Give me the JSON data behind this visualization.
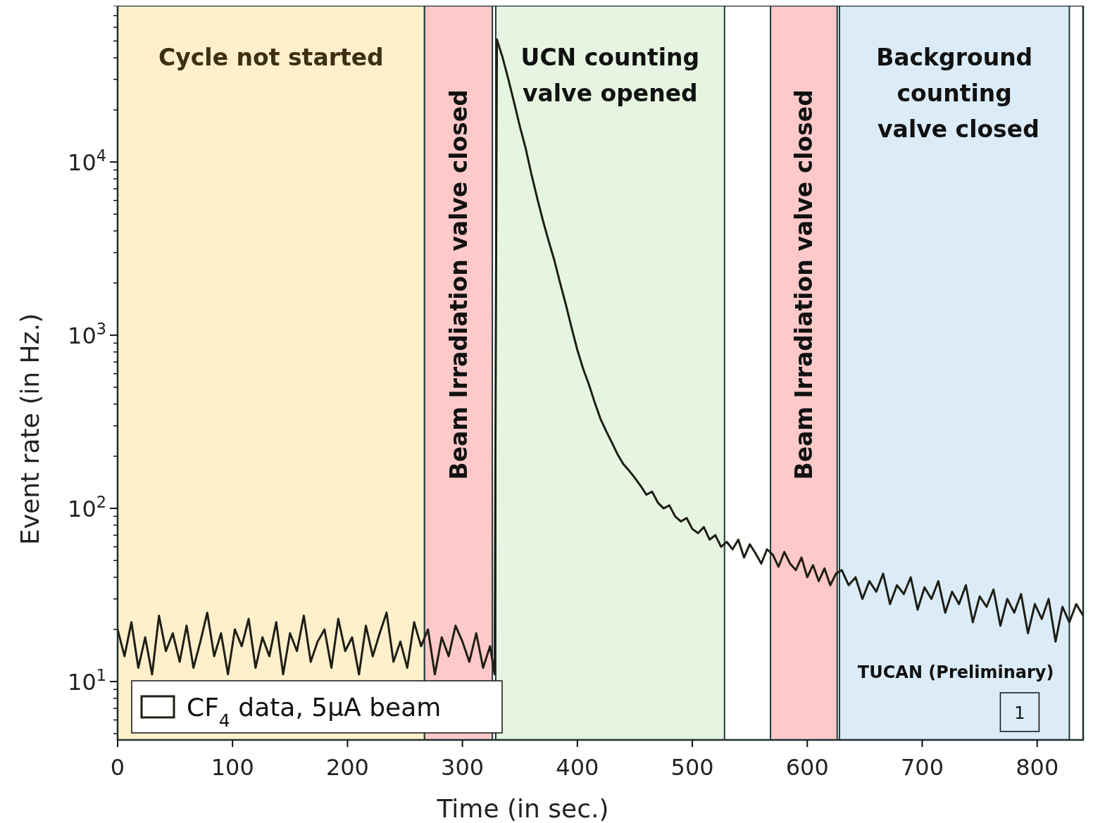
{
  "chart_data": {
    "type": "line",
    "xlabel": "Time (in sec.)",
    "ylabel": "Event rate (in Hz.)",
    "log": "y",
    "xlim": [
      0,
      840
    ],
    "ylim": [
      4.6,
      80000
    ],
    "xticks": [
      0,
      100,
      200,
      300,
      400,
      500,
      600,
      700,
      800
    ],
    "yticks": [
      {
        "value": 10,
        "label": "10$^{1}$"
      },
      {
        "value": 100,
        "label": "10$^{2}$"
      },
      {
        "value": 1000,
        "label": "10$^{3}$"
      },
      {
        "value": 10000,
        "label": "10$^{4}$"
      }
    ],
    "legend": "bottom left",
    "marker": "none",
    "line_style": "solid",
    "grid": false,
    "bands": [
      {
        "axis": "x",
        "from": 0,
        "to": 267,
        "label": "Cycle not started",
        "color": "#fff0cc"
      },
      {
        "axis": "x",
        "from": 267,
        "to": 326,
        "label": "Beam Irradiation valve closed",
        "color": "#ffc9c9"
      },
      {
        "axis": "x",
        "from": 329,
        "to": 528,
        "label": "UCN counting\nvalve opened",
        "color": "#e6f5e1"
      },
      {
        "axis": "x",
        "from": 568,
        "to": 626,
        "label": "Beam Irradiation valve closed",
        "color": "#ffc9c9"
      },
      {
        "axis": "x",
        "from": 628,
        "to": 828,
        "label": "Background\ncounting\n valve closed",
        "color": "#dbecf8"
      }
    ],
    "annotations": [
      "TUCAN (Preliminary)",
      "1"
    ],
    "series": [
      {
        "name": "CF$_{4}$ data, 5μA beam",
        "color": "#1e1e14",
        "x": [
          0,
          6,
          12,
          18,
          24,
          30,
          36,
          42,
          48,
          54,
          60,
          66,
          72,
          78,
          84,
          90,
          96,
          102,
          108,
          114,
          120,
          126,
          132,
          138,
          144,
          150,
          156,
          162,
          168,
          174,
          180,
          186,
          192,
          198,
          204,
          210,
          216,
          222,
          228,
          234,
          240,
          246,
          252,
          258,
          264,
          270,
          276,
          282,
          288,
          294,
          300,
          306,
          312,
          318,
          324,
          328,
          330,
          335,
          340,
          345,
          350,
          355,
          360,
          365,
          370,
          375,
          380,
          385,
          390,
          395,
          400,
          405,
          410,
          415,
          420,
          425,
          430,
          435,
          440,
          445,
          450,
          455,
          460,
          465,
          470,
          475,
          480,
          485,
          490,
          495,
          500,
          505,
          510,
          515,
          520,
          525,
          530,
          535,
          540,
          545,
          550,
          555,
          560,
          565,
          570,
          575,
          580,
          585,
          590,
          595,
          600,
          605,
          610,
          615,
          620,
          625,
          630,
          636,
          642,
          648,
          654,
          660,
          666,
          672,
          678,
          684,
          690,
          696,
          702,
          708,
          714,
          720,
          726,
          732,
          738,
          744,
          750,
          756,
          762,
          768,
          774,
          780,
          786,
          792,
          798,
          804,
          810,
          816,
          822,
          828,
          834,
          840
        ],
        "values": [
          20,
          14,
          22,
          12,
          18,
          11,
          24,
          15,
          19,
          13,
          21,
          12,
          17,
          25,
          14,
          19,
          11,
          20,
          16,
          23,
          12,
          18,
          14,
          22,
          11,
          19,
          15,
          24,
          13,
          17,
          20,
          12,
          23,
          15,
          18,
          11,
          21,
          14,
          19,
          25,
          13,
          17,
          12,
          22,
          16,
          20,
          11,
          18,
          14,
          21,
          17,
          13,
          19,
          12,
          16,
          11,
          51000,
          40000,
          30000,
          22000,
          16000,
          12000,
          8500,
          6200,
          4600,
          3500,
          2700,
          2000,
          1500,
          1100,
          820,
          640,
          520,
          410,
          330,
          280,
          240,
          205,
          180,
          165,
          150,
          135,
          120,
          125,
          108,
          100,
          104,
          90,
          84,
          88,
          76,
          72,
          78,
          66,
          70,
          60,
          64,
          58,
          66,
          52,
          62,
          55,
          48,
          58,
          54,
          46,
          56,
          48,
          44,
          52,
          40,
          47,
          38,
          45,
          36,
          42,
          44,
          36,
          40,
          30,
          38,
          33,
          42,
          28,
          36,
          32,
          40,
          26,
          35,
          30,
          38,
          25,
          33,
          28,
          36,
          22,
          31,
          27,
          34,
          21,
          30,
          25,
          32,
          19,
          28,
          23,
          30,
          17,
          27,
          22,
          28,
          24
        ]
      }
    ]
  }
}
